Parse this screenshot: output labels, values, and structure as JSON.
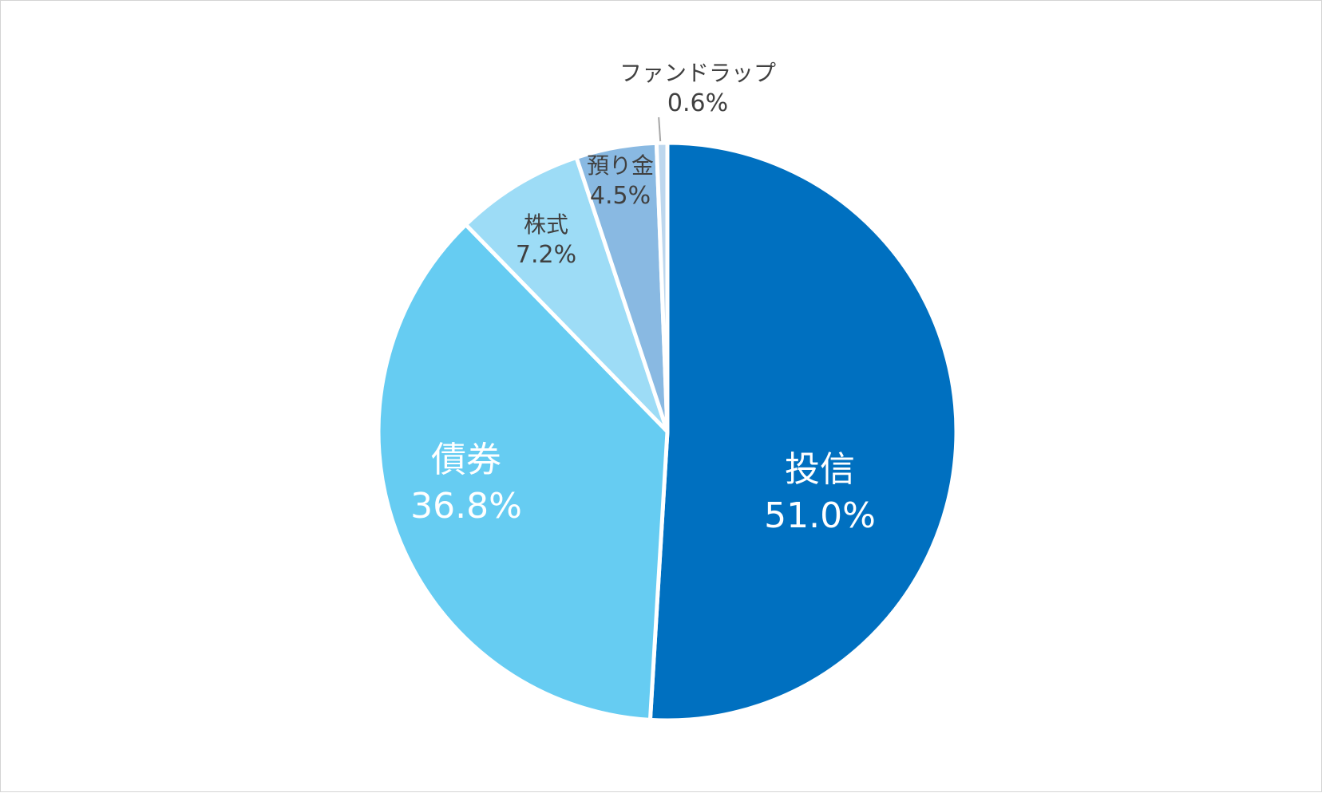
{
  "chart_data": {
    "type": "pie",
    "title": "",
    "start_angle_deg": 0,
    "direction": "clockwise",
    "legend": "none",
    "slices": [
      {
        "label": "投信",
        "value": 51.0,
        "value_label": "51.0%",
        "color": "#0070c0",
        "text_color": "#ffffff",
        "label_size": "large"
      },
      {
        "label": "債券",
        "value": 36.8,
        "value_label": "36.8%",
        "color": "#66ccf2",
        "text_color": "#ffffff",
        "label_size": "large"
      },
      {
        "label": "株式",
        "value": 7.2,
        "value_label": "7.2%",
        "color": "#9ddcf6",
        "text_color": "#404040",
        "label_size": "small"
      },
      {
        "label": "預り金",
        "value": 4.5,
        "value_label": "4.5%",
        "color": "#89b9e2",
        "text_color": "#404040",
        "label_size": "small"
      },
      {
        "label": "ファンドラップ",
        "value": 0.6,
        "value_label": "0.6%",
        "color": "#bdd7ee",
        "text_color": "#404040",
        "label_size": "small",
        "label_outside": true
      }
    ]
  }
}
